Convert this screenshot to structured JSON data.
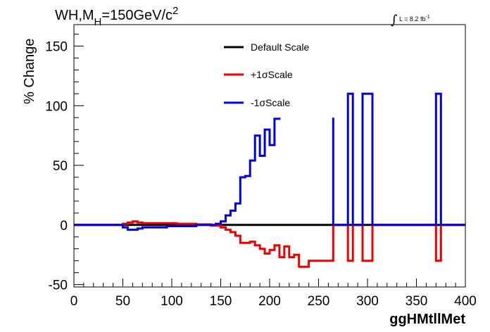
{
  "chart_data": {
    "type": "line",
    "title": {
      "main": "WH,M",
      "sub": "H",
      "eq": "=150GeV/c",
      "sup": "2"
    },
    "lumi": {
      "prefix": "L = 8.2 fb",
      "sup": "-1"
    },
    "xlabel": "ggHMtllMet",
    "ylabel": "% Change",
    "xlim": [
      0,
      400
    ],
    "ylim": [
      -52,
      168
    ],
    "xticks": [
      0,
      50,
      100,
      150,
      200,
      250,
      300,
      350,
      400
    ],
    "yticks": [
      -50,
      0,
      50,
      100,
      150
    ],
    "colors": {
      "Default Scale": "#000000",
      "+1σScale": "#ee0000",
      "-1σScale": "#0000dd"
    },
    "series": [
      {
        "name": "Default Scale",
        "points": [
          [
            0,
            0
          ],
          [
            400,
            0
          ]
        ]
      },
      {
        "name": "+1σScale",
        "points": [
          [
            0,
            0
          ],
          [
            50,
            0
          ],
          [
            50,
            1
          ],
          [
            55,
            1
          ],
          [
            55,
            2
          ],
          [
            60,
            2
          ],
          [
            60,
            3
          ],
          [
            65,
            3
          ],
          [
            65,
            2
          ],
          [
            70,
            2
          ],
          [
            70,
            1.5
          ],
          [
            105,
            1.5
          ],
          [
            105,
            1
          ],
          [
            125,
            1
          ],
          [
            125,
            0.5
          ],
          [
            140,
            0.5
          ],
          [
            140,
            -0.5
          ],
          [
            150,
            -0.5
          ],
          [
            150,
            -2
          ],
          [
            155,
            -2
          ],
          [
            155,
            -4
          ],
          [
            160,
            -4
          ],
          [
            160,
            -6
          ],
          [
            165,
            -6
          ],
          [
            165,
            -9
          ],
          [
            170,
            -9
          ],
          [
            170,
            -15
          ],
          [
            180,
            -15
          ],
          [
            180,
            -14
          ],
          [
            185,
            -14
          ],
          [
            185,
            -17
          ],
          [
            190,
            -17
          ],
          [
            190,
            -20
          ],
          [
            195,
            -20
          ],
          [
            195,
            -24
          ],
          [
            200,
            -24
          ],
          [
            200,
            -21
          ],
          [
            205,
            -21
          ],
          [
            205,
            -17
          ],
          [
            210,
            -17
          ],
          [
            210,
            -27
          ],
          [
            215,
            -27
          ],
          [
            215,
            -18
          ],
          [
            220,
            -18
          ],
          [
            220,
            -27
          ],
          [
            225,
            -27
          ],
          [
            225,
            -25
          ],
          [
            230,
            -25
          ],
          [
            230,
            -35
          ],
          [
            240,
            -35
          ],
          [
            240,
            -30
          ],
          [
            265,
            -30
          ],
          [
            265,
            0
          ],
          [
            280,
            0
          ],
          [
            280,
            -30
          ],
          [
            285,
            -30
          ],
          [
            285,
            0
          ],
          [
            295,
            0
          ],
          [
            295,
            -30
          ],
          [
            305,
            -30
          ],
          [
            305,
            0
          ],
          [
            370,
            0
          ],
          [
            370,
            -30
          ],
          [
            375,
            -30
          ],
          [
            375,
            0
          ],
          [
            400,
            0
          ]
        ]
      },
      {
        "name": "-1σScale",
        "segments": [
          [
            [
              0,
              0
            ],
            [
              50,
              0
            ],
            [
              50,
              -2
            ],
            [
              55,
              -2
            ],
            [
              55,
              -4
            ],
            [
              65,
              -4
            ],
            [
              65,
              -3
            ],
            [
              70,
              -3
            ],
            [
              70,
              -2
            ],
            [
              95,
              -2
            ],
            [
              95,
              -1
            ],
            [
              125,
              -1
            ],
            [
              125,
              0
            ],
            [
              145,
              0
            ],
            [
              145,
              1
            ],
            [
              150,
              1
            ],
            [
              150,
              3
            ],
            [
              155,
              3
            ],
            [
              155,
              8
            ],
            [
              160,
              8
            ],
            [
              160,
              12
            ],
            [
              165,
              12
            ],
            [
              165,
              18
            ],
            [
              170,
              18
            ],
            [
              170,
              40
            ],
            [
              175,
              40
            ],
            [
              175,
              41
            ],
            [
              180,
              41
            ],
            [
              180,
              54
            ],
            [
              185,
              54
            ],
            [
              185,
              75
            ],
            [
              190,
              75
            ],
            [
              190,
              58
            ],
            [
              195,
              58
            ],
            [
              195,
              80
            ],
            [
              200,
              80
            ],
            [
              200,
              67
            ],
            [
              205,
              67
            ],
            [
              205,
              89
            ],
            [
              210,
              89
            ],
            [
              210,
              90
            ]
          ],
          [
            [
              265,
              90
            ],
            [
              265,
              0
            ],
            [
              280,
              0
            ],
            [
              280,
              110
            ],
            [
              285,
              110
            ],
            [
              285,
              0
            ],
            [
              295,
              0
            ],
            [
              295,
              110
            ],
            [
              305,
              110
            ],
            [
              305,
              0
            ],
            [
              370,
              0
            ],
            [
              370,
              110
            ],
            [
              375,
              110
            ],
            [
              375,
              0
            ],
            [
              400,
              0
            ]
          ]
        ]
      }
    ],
    "legend": {
      "placement": "top-center",
      "entries": [
        "Default Scale",
        "+1σScale",
        "-1σScale"
      ]
    }
  }
}
